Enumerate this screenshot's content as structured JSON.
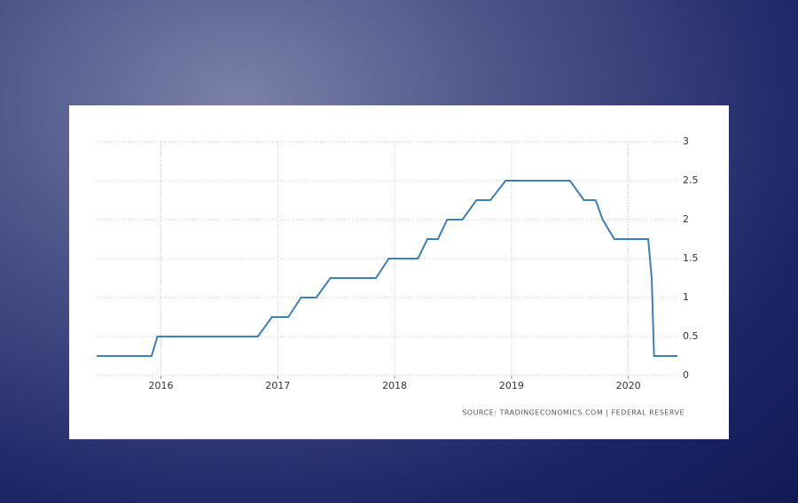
{
  "chart_data": {
    "type": "line",
    "source": "SOURCE: TRADINGECONOMICS.COM | FEDERAL RESERVE",
    "x": [
      2015.45,
      2015.92,
      2015.97,
      2016.83,
      2016.95,
      2017.09,
      2017.2,
      2017.33,
      2017.45,
      2017.84,
      2017.95,
      2018.2,
      2018.28,
      2018.37,
      2018.45,
      2018.58,
      2018.7,
      2018.82,
      2018.95,
      2019.5,
      2019.62,
      2019.72,
      2019.78,
      2019.88,
      2020.17,
      2020.2,
      2020.22,
      2020.42
    ],
    "series": [
      {
        "color": "#3f7fb5",
        "values": [
          0.25,
          0.25,
          0.5,
          0.5,
          0.75,
          0.75,
          1.0,
          1.0,
          1.25,
          1.25,
          1.5,
          1.5,
          1.75,
          1.75,
          2.0,
          2.0,
          2.25,
          2.25,
          2.5,
          2.5,
          2.25,
          2.25,
          2.0,
          1.75,
          1.75,
          1.25,
          0.25,
          0.25
        ]
      }
    ],
    "xlim": [
      2015.45,
      2020.42
    ],
    "xticks": [
      2016,
      2017,
      2018,
      2019,
      2020
    ],
    "ylim": [
      0,
      3
    ],
    "yticks": [
      0,
      0.5,
      1,
      1.5,
      2,
      2.5,
      3
    ],
    "grid": true
  }
}
